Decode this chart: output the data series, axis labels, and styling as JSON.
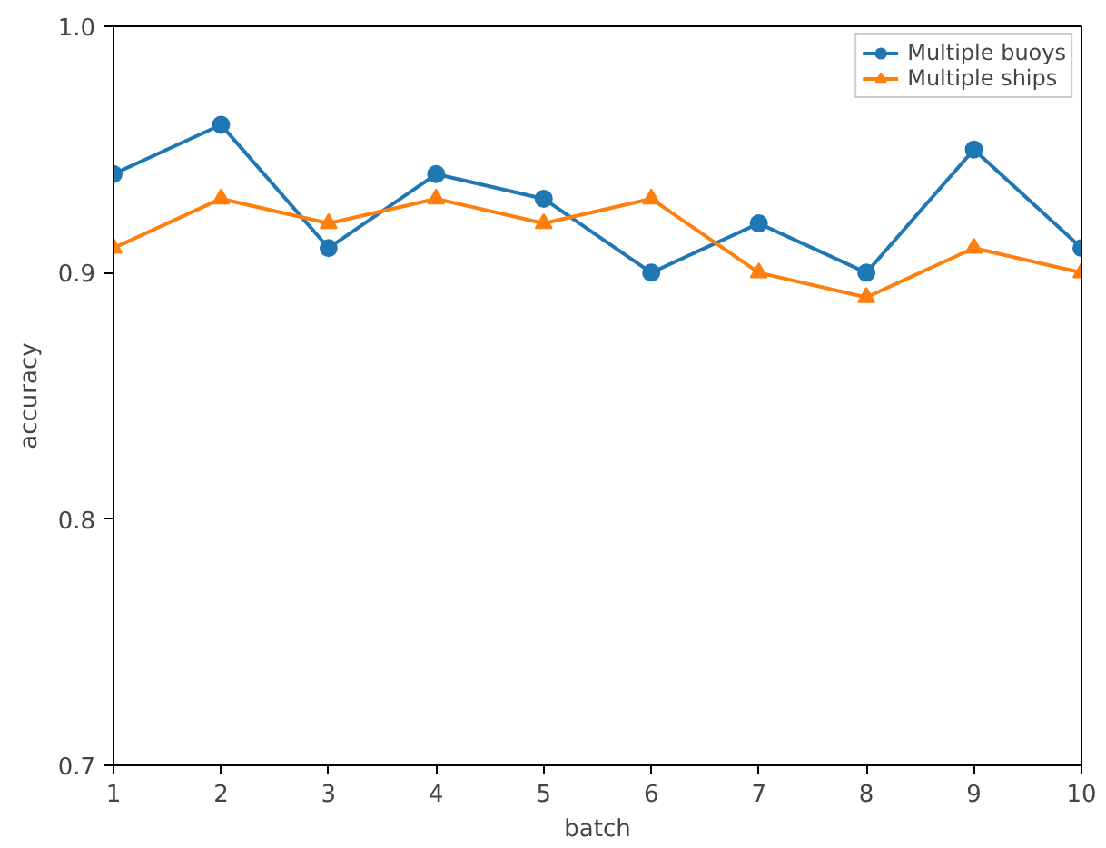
{
  "chart_data": {
    "type": "line",
    "xlabel": "batch",
    "ylabel": "accuracy",
    "x": [
      1,
      2,
      3,
      4,
      5,
      6,
      7,
      8,
      9,
      10
    ],
    "series": [
      {
        "name": "Multiple buoys",
        "color": "#1f77b4",
        "marker": "circle",
        "values": [
          0.94,
          0.96,
          0.91,
          0.94,
          0.93,
          0.9,
          0.92,
          0.9,
          0.95,
          0.91
        ]
      },
      {
        "name": "Multiple ships",
        "color": "#ff7f0e",
        "marker": "triangle",
        "values": [
          0.91,
          0.93,
          0.92,
          0.93,
          0.92,
          0.93,
          0.9,
          0.89,
          0.91,
          0.9
        ]
      }
    ],
    "xlim": [
      1,
      10
    ],
    "ylim": [
      0.7,
      1.0
    ],
    "xticks": [
      1,
      2,
      3,
      4,
      5,
      6,
      7,
      8,
      9,
      10
    ],
    "yticks": [
      0.7,
      0.8,
      0.9,
      {
        "value": 1.0,
        "label": "1.0"
      }
    ],
    "grid": false,
    "legend": "top right",
    "line_style": "solid"
  }
}
